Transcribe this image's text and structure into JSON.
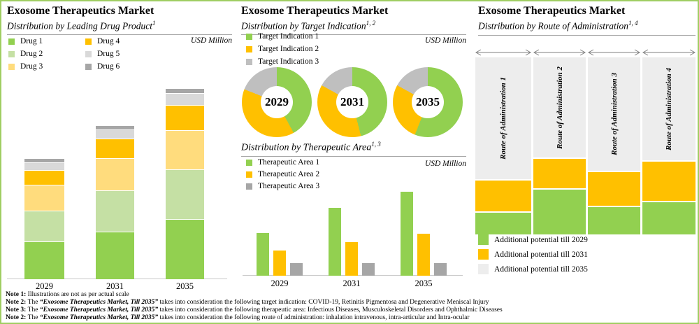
{
  "colors": {
    "green": "#92D050",
    "light_green": "#C5E0A4",
    "pale_yellow": "#FFDC7D",
    "orange": "#FFC000",
    "light_gray": "#D9D9D9",
    "mid_gray": "#BFBFBF",
    "dark_gray": "#A6A6A6",
    "column_gray": "#EDEDED",
    "border_green": "#A0CE63"
  },
  "panels": {
    "left": {
      "title": "Exosome Therapeutics Market",
      "subtitle": "Distribution by Leading Drug Product",
      "subtitle_sup": "1",
      "unit_label": "USD Million",
      "legend": [
        {
          "label": "Drug 1",
          "color": "#92D050"
        },
        {
          "label": "Drug 2",
          "color": "#C5E0A4"
        },
        {
          "label": "Drug 3",
          "color": "#FFDC7D"
        },
        {
          "label": "Drug 4",
          "color": "#FFC000"
        },
        {
          "label": "Drug 5",
          "color": "#D9D9D9"
        },
        {
          "label": "Drug 6",
          "color": "#A6A6A6"
        }
      ]
    },
    "middle": {
      "title": "Exosome Therapeutics Market",
      "subtitle": "Distribution by Target Indication",
      "subtitle_sup": "1, 2",
      "unit_label": "USD Million",
      "legend": [
        {
          "label": "Target Indication 1",
          "color": "#92D050"
        },
        {
          "label": "Target Indication 2",
          "color": "#FFC000"
        },
        {
          "label": "Target Indication 3",
          "color": "#BFBFBF"
        }
      ],
      "section2": {
        "subtitle": "Distribution by Therapeutic Area",
        "subtitle_sup": "1, 3",
        "unit_label": "USD Million",
        "legend": [
          {
            "label": "Therapeutic Area 1",
            "color": "#92D050"
          },
          {
            "label": "Therapeutic Area 2",
            "color": "#FFC000"
          },
          {
            "label": "Therapeutic Area 3",
            "color": "#A6A6A6"
          }
        ]
      }
    },
    "right": {
      "title": "Exosome Therapeutics Market",
      "subtitle": "Distribution by Route of Administration",
      "subtitle_sup": "1, 4",
      "legend": [
        {
          "label": "Additional potential till 2029",
          "color": "#92D050"
        },
        {
          "label": "Additional potential till 2031",
          "color": "#FFC000"
        },
        {
          "label": "Additional potential till 2035",
          "color": "#EDEDED"
        }
      ]
    }
  },
  "chart_data": [
    {
      "id": "leading_drug",
      "type": "bar",
      "stacked": true,
      "title": "Exosome Therapeutics Market — Distribution by Leading Drug Product",
      "ylabel": "USD Million",
      "value_note": "illustrative relative heights; chart not drawn to actual scale (no numeric axis shown)",
      "categories": [
        "2029",
        "2031",
        "2035"
      ],
      "series": [
        {
          "name": "Drug 1",
          "color": "#92D050",
          "values": [
            53,
            67,
            85
          ]
        },
        {
          "name": "Drug 2",
          "color": "#C5E0A4",
          "values": [
            43,
            58,
            70
          ]
        },
        {
          "name": "Drug 3",
          "color": "#FFDC7D",
          "values": [
            36,
            45,
            55
          ]
        },
        {
          "name": "Drug 4",
          "color": "#FFC000",
          "values": [
            20,
            27,
            35
          ]
        },
        {
          "name": "Drug 5",
          "color": "#D9D9D9",
          "values": [
            10,
            12,
            16
          ]
        },
        {
          "name": "Drug 6",
          "color": "#A6A6A6",
          "values": [
            5,
            5,
            6
          ]
        }
      ],
      "legend_position": "top-left",
      "grid": false
    },
    {
      "id": "target_indication",
      "type": "pie",
      "donut": true,
      "title": "Exosome Therapeutics Market — Distribution by Target Indication",
      "ylabel": "USD Million",
      "segments": [
        "Target Indication 1",
        "Target Indication 2",
        "Target Indication 3"
      ],
      "segment_colors": [
        "#92D050",
        "#FFC000",
        "#BFBFBF"
      ],
      "charts": [
        {
          "label": "2029",
          "values_pct": [
            42,
            39,
            19
          ]
        },
        {
          "label": "2031",
          "values_pct": [
            46,
            37,
            17
          ]
        },
        {
          "label": "2035",
          "values_pct": [
            56,
            27,
            17
          ]
        }
      ],
      "legend_position": "top-left",
      "start_angle_deg": 0,
      "direction": "clockwise"
    },
    {
      "id": "therapeutic_area",
      "type": "bar",
      "stacked": false,
      "title": "Exosome Therapeutics Market — Distribution by Therapeutic Area",
      "ylabel": "USD Million",
      "value_note": "illustrative relative heights; chart not drawn to actual scale (no numeric axis shown)",
      "categories": [
        "2029",
        "2031",
        "2035"
      ],
      "series": [
        {
          "name": "Therapeutic Area 1",
          "color": "#92D050",
          "values": [
            61,
            97,
            120
          ]
        },
        {
          "name": "Therapeutic Area 2",
          "color": "#FFC000",
          "values": [
            36,
            48,
            60
          ]
        },
        {
          "name": "Therapeutic Area 3",
          "color": "#A6A6A6",
          "values": [
            18,
            18,
            18
          ]
        }
      ],
      "legend_position": "top-left",
      "grid": false
    },
    {
      "id": "route_of_administration",
      "type": "bar",
      "stacked": true,
      "title": "Exosome Therapeutics Market — Distribution by Route of Administration",
      "value_note": "illustrative relative heights; columns topped by double-arrow width markers",
      "categories": [
        "Route of Administration 1",
        "Route of Administration 2",
        "Route of Administration 3",
        "Route of Administration 4"
      ],
      "series": [
        {
          "name": "Additional potential till 2029",
          "color": "#92D050",
          "values": [
            31,
            64,
            39,
            46
          ]
        },
        {
          "name": "Additional potential till 2031",
          "color": "#FFC000",
          "values": [
            44,
            42,
            48,
            56
          ]
        },
        {
          "name": "Additional potential till 2035",
          "color": "#EDEDED",
          "values": [
            174,
            143,
            162,
            147
          ]
        }
      ],
      "legend_position": "bottom-left",
      "grid": false
    }
  ],
  "notes": [
    {
      "label": "Note 1:",
      "before": "Illustrations are not as per actual scale",
      "market": "",
      "after": ""
    },
    {
      "label": "Note 2:",
      "before": "The ",
      "market": "“Exosome Therapeutics Market, Till 2035”",
      "after": " takes into consideration the following target indication: COVID-19, Retinitis Pigmentosa and Degenerative Meniscal Injury"
    },
    {
      "label": "Note 3:",
      "before": "The ",
      "market": "“Exosome Therapeutics Market, Till 2035”",
      "after": " takes into consideration the following therapeutic area: Infectious Diseases, Musculoskeletal Disorders and Ophthalmic Diseases"
    },
    {
      "label": "Note 2:",
      "before": "The ",
      "market": "“Exosome Therapeutics Market, Till 2035”",
      "after": " takes into consideration the following route of administration: inhalation intravenous, intra-articular and Intra-ocular"
    }
  ]
}
